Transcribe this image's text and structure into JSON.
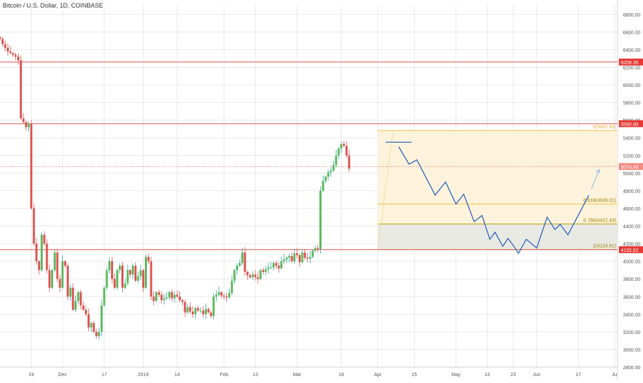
{
  "header": {
    "title": "Bitcoin / U.S. Dollar, 1D, COINBASE"
  },
  "colors": {
    "up": "#26a69a",
    "up_body": "#5cb85c",
    "down": "#d9534f",
    "grid": "#e8e8e8",
    "level_line": "#e34a4a",
    "fib_line": "#f0c040",
    "fib_fill": "#fdf3dc",
    "fib_fill_bottom": "#e9e9e4",
    "projection": "#2962b8",
    "price_label_bg": "#e53935"
  },
  "chart_data": {
    "type": "candlestick",
    "title": "Bitcoin / U.S. Dollar, 1D, COINBASE",
    "ylim": [
      2800,
      6900
    ],
    "yticks": [
      "2800.00",
      "3000.00",
      "3200.00",
      "3400.00",
      "3600.00",
      "3800.00",
      "4000.00",
      "4200.00",
      "4400.00",
      "4600.00",
      "4800.00",
      "5000.00",
      "5200.00",
      "5400.00",
      "5600.00",
      "5800.00",
      "6000.00",
      "6200.00",
      "6400.00",
      "6600.00",
      "6800.00"
    ],
    "x_start": "2018-11-07",
    "x_end": "2019-07-02",
    "xticks": [
      {
        "date": "2018-11-19",
        "label": "19"
      },
      {
        "date": "2018-12-01",
        "label": "Dec"
      },
      {
        "date": "2018-12-17",
        "label": "17"
      },
      {
        "date": "2019-01-01",
        "label": "2019"
      },
      {
        "date": "2019-01-14",
        "label": "14"
      },
      {
        "date": "2019-02-01",
        "label": "Feb"
      },
      {
        "date": "2019-02-13",
        "label": "13"
      },
      {
        "date": "2019-03-01",
        "label": "Mar"
      },
      {
        "date": "2019-03-18",
        "label": "18"
      },
      {
        "date": "2019-04-01",
        "label": "Apr"
      },
      {
        "date": "2019-04-15",
        "label": "15"
      },
      {
        "date": "2019-05-01",
        "label": "May"
      },
      {
        "date": "2019-05-13",
        "label": "13"
      },
      {
        "date": "2019-05-23",
        "label": "23"
      },
      {
        "date": "2019-06-01",
        "label": "Jun"
      },
      {
        "date": "2019-06-17",
        "label": "17"
      },
      {
        "date": "2019-07-01",
        "label": "Jul"
      }
    ],
    "candles_start": "2018-11-07",
    "closes": [
      6520,
      6460,
      6420,
      6380,
      6360,
      6340,
      6320,
      6280,
      5620,
      5580,
      5520,
      5560,
      4600,
      4200,
      4000,
      3900,
      4300,
      4200,
      3900,
      3700,
      3900,
      4100,
      3800,
      3700,
      4000,
      3950,
      3600,
      3700,
      3450,
      3550,
      3650,
      3500,
      3450,
      3400,
      3250,
      3300,
      3200,
      3150,
      3200,
      3500,
      3700,
      3900,
      4000,
      3800,
      3700,
      3900,
      3950,
      3700,
      3750,
      3900,
      3850,
      3950,
      3780,
      3830,
      3900,
      3700,
      4050,
      4000,
      3600,
      3550,
      3650,
      3620,
      3560,
      3580,
      3590,
      3650,
      3580,
      3620,
      3600,
      3560,
      3540,
      3420,
      3480,
      3430,
      3400,
      3470,
      3440,
      3440,
      3400,
      3460,
      3420,
      3380,
      3600,
      3620,
      3650,
      3610,
      3600,
      3590,
      3640,
      3780,
      3900,
      3950,
      3980,
      4100,
      3880,
      3840,
      3820,
      3850,
      3820,
      3800,
      3900,
      3880,
      3910,
      3930,
      3930,
      3980,
      3950,
      3920,
      4000,
      4020,
      4040,
      4060,
      4000,
      4090,
      4070,
      3990,
      4100,
      4040,
      4030,
      4050,
      4120,
      4150,
      4140,
      4800,
      4910,
      4960,
      5010,
      5030,
      5090,
      5200,
      5280,
      5330,
      5310,
      5200,
      5050
    ],
    "levels": [
      {
        "price": 6259.35,
        "label": "6259.35"
      },
      {
        "price": 5560.0,
        "label": "5560.00"
      },
      {
        "price": 4132.02,
        "label": "4132.02"
      }
    ],
    "dotted_level": {
      "price": 5074.4,
      "label": "5074.40"
    },
    "fib_start": "2019-04-01",
    "fib": [
      {
        "ratio": "0",
        "price": 5482.49,
        "label": "0(5482.49)"
      },
      {
        "ratio": "0.618",
        "price": 4649.01,
        "label": "0.618(4649.01)"
      },
      {
        "ratio": "0.786",
        "price": 4422.43,
        "label": "0.786(4422.43)"
      },
      {
        "ratio": "1",
        "price": 4133.81,
        "label": "1(4133.81)"
      }
    ],
    "resistance_segment": {
      "start": "2019-04-04",
      "end": "2019-04-14",
      "price": 5350
    },
    "projection": [
      {
        "date": "2019-04-09",
        "price": 5300
      },
      {
        "date": "2019-04-13",
        "price": 5100
      },
      {
        "date": "2019-04-16",
        "price": 5150
      },
      {
        "date": "2019-04-23",
        "price": 4750
      },
      {
        "date": "2019-04-27",
        "price": 4900
      },
      {
        "date": "2019-05-01",
        "price": 4650
      },
      {
        "date": "2019-05-04",
        "price": 4760
      },
      {
        "date": "2019-05-08",
        "price": 4450
      },
      {
        "date": "2019-05-11",
        "price": 4520
      },
      {
        "date": "2019-05-14",
        "price": 4250
      },
      {
        "date": "2019-05-16",
        "price": 4330
      },
      {
        "date": "2019-05-19",
        "price": 4170
      },
      {
        "date": "2019-05-21",
        "price": 4260
      },
      {
        "date": "2019-05-23",
        "price": 4180
      },
      {
        "date": "2019-05-25",
        "price": 4090
      },
      {
        "date": "2019-05-28",
        "price": 4250
      },
      {
        "date": "2019-06-01",
        "price": 4150
      },
      {
        "date": "2019-06-05",
        "price": 4500
      },
      {
        "date": "2019-06-08",
        "price": 4360
      },
      {
        "date": "2019-06-10",
        "price": 4420
      },
      {
        "date": "2019-06-13",
        "price": 4300
      },
      {
        "date": "2019-06-21",
        "price": 4750
      }
    ],
    "arrow": {
      "start": {
        "date": "2019-06-22",
        "price": 4820
      },
      "end": {
        "date": "2019-06-25",
        "price": 5040
      }
    }
  }
}
